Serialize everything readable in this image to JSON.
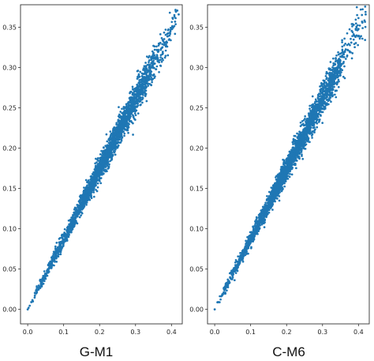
{
  "accent_color": "#1f77b4",
  "chart_data": [
    {
      "type": "scatter",
      "title": "",
      "xlabel": "G-M1",
      "ylabel": "",
      "xlim": [
        -0.02,
        0.43
      ],
      "ylim": [
        -0.018,
        0.378
      ],
      "xticks": [
        "0.0",
        "0.1",
        "0.2",
        "0.3",
        "0.4"
      ],
      "yticks": [
        "0.00",
        "0.05",
        "0.10",
        "0.15",
        "0.20",
        "0.25",
        "0.30",
        "0.35"
      ],
      "grid": false,
      "series": [
        {
          "color": "#1f77b4",
          "trend": {
            "slope": 0.87,
            "intercept": 0.0
          },
          "x": [
            0.0,
            0.01,
            0.02,
            0.03,
            0.04,
            0.05,
            0.06,
            0.07,
            0.08,
            0.09,
            0.1,
            0.11,
            0.12,
            0.13,
            0.14,
            0.15,
            0.16,
            0.17,
            0.18,
            0.19,
            0.2,
            0.21,
            0.22,
            0.23,
            0.24,
            0.25,
            0.26,
            0.27,
            0.28,
            0.29,
            0.3,
            0.31,
            0.32,
            0.33,
            0.34,
            0.35,
            0.36,
            0.37,
            0.38,
            0.39,
            0.4,
            0.41,
            0.42
          ],
          "y": [
            0.0,
            0.009,
            0.017,
            0.026,
            0.035,
            0.044,
            0.052,
            0.061,
            0.07,
            0.078,
            0.087,
            0.096,
            0.104,
            0.113,
            0.122,
            0.131,
            0.139,
            0.148,
            0.157,
            0.165,
            0.174,
            0.183,
            0.191,
            0.2,
            0.209,
            0.218,
            0.226,
            0.235,
            0.244,
            0.252,
            0.261,
            0.27,
            0.278,
            0.287,
            0.296,
            0.305,
            0.313,
            0.322,
            0.331,
            0.339,
            0.348,
            0.357,
            0.366
          ]
        }
      ]
    },
    {
      "type": "scatter",
      "title": "",
      "xlabel": "C-M6",
      "ylabel": "",
      "xlim": [
        -0.02,
        0.43
      ],
      "ylim": [
        -0.018,
        0.378
      ],
      "xticks": [
        "0.0",
        "0.1",
        "0.2",
        "0.3",
        "0.4"
      ],
      "yticks": [
        "0.00",
        "0.05",
        "0.10",
        "0.15",
        "0.20",
        "0.25",
        "0.30",
        "0.35"
      ],
      "grid": false,
      "series": [
        {
          "color": "#1f77b4",
          "trend": {
            "slope": 0.87,
            "intercept": 0.0
          },
          "x": [
            0.0,
            0.01,
            0.02,
            0.03,
            0.04,
            0.05,
            0.06,
            0.07,
            0.08,
            0.09,
            0.1,
            0.11,
            0.12,
            0.13,
            0.14,
            0.15,
            0.16,
            0.17,
            0.18,
            0.19,
            0.2,
            0.21,
            0.22,
            0.23,
            0.24,
            0.25,
            0.26,
            0.27,
            0.28,
            0.29,
            0.3,
            0.31,
            0.32,
            0.33,
            0.34,
            0.35,
            0.36,
            0.37,
            0.38,
            0.39,
            0.4,
            0.41,
            0.42
          ],
          "y": [
            0.0,
            0.009,
            0.017,
            0.026,
            0.035,
            0.044,
            0.052,
            0.061,
            0.07,
            0.078,
            0.087,
            0.096,
            0.104,
            0.113,
            0.122,
            0.131,
            0.139,
            0.148,
            0.157,
            0.165,
            0.174,
            0.183,
            0.191,
            0.2,
            0.209,
            0.218,
            0.226,
            0.235,
            0.244,
            0.252,
            0.261,
            0.27,
            0.278,
            0.287,
            0.296,
            0.305,
            0.313,
            0.322,
            0.331,
            0.339,
            0.348,
            0.357,
            0.366
          ]
        }
      ]
    }
  ]
}
